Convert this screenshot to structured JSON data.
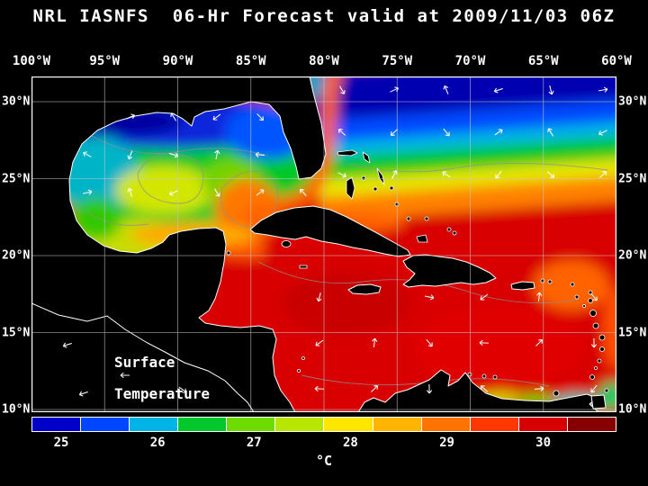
{
  "title": "NRL IASNFS  06-Hr Forecast valid at 2009/11/03 06Z",
  "map": {
    "lon_labels": [
      "100°W",
      "95°W",
      "90°W",
      "85°W",
      "80°W",
      "75°W",
      "70°W",
      "65°W",
      "60°W"
    ],
    "lat_labels": [
      "30°N",
      "25°N",
      "20°N",
      "15°N",
      "10°N"
    ],
    "annotation_line1": "Surface",
    "annotation_line2": "Temperature",
    "land_color": "#000000",
    "coastline_color": "#ffffff",
    "grid_color": "#c8c8c8",
    "contour_color": "#909090",
    "vector_color": "#ffffff"
  },
  "colorbar": {
    "tick_labels": [
      "25",
      "26",
      "27",
      "28",
      "29",
      "30"
    ],
    "unit": "°C",
    "segment_colors": [
      "#0000c8",
      "#0046ff",
      "#00b4e6",
      "#00c82d",
      "#6edc00",
      "#b9e600",
      "#ffe600",
      "#ffb400",
      "#ff7300",
      "#ff3700",
      "#d70000",
      "#870000"
    ]
  }
}
